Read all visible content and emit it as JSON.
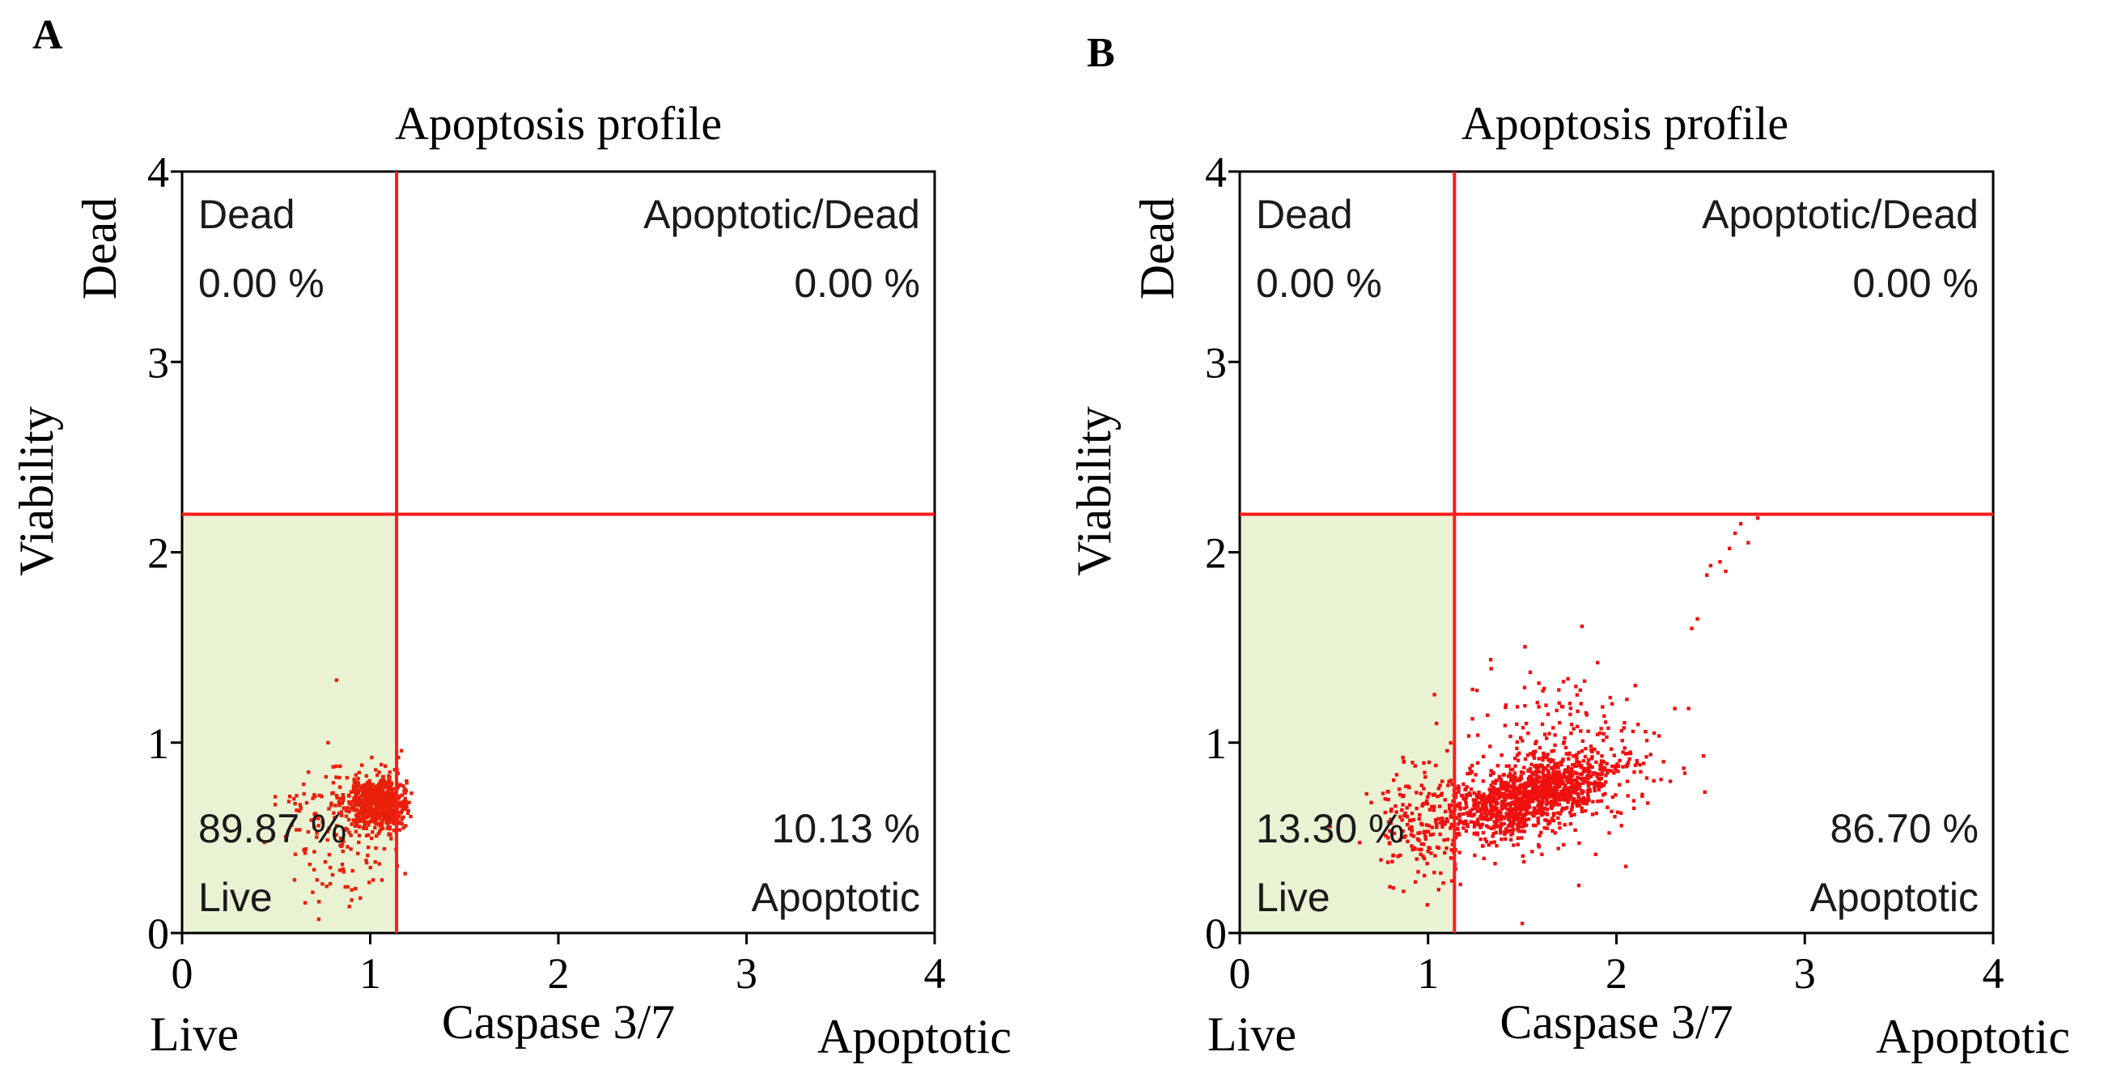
{
  "chart_data": [
    {
      "panel": "A",
      "type": "scatter",
      "title": "Apoptosis profile",
      "xlabel": "Caspase 3/7",
      "ylabel": "Viability",
      "x_low_label": "Live",
      "x_high_label": "Apoptotic",
      "y_high_label": "Dead",
      "xlim": [
        0,
        4
      ],
      "ylim": [
        0,
        4
      ],
      "x_ticks": [
        "0",
        "1",
        "2",
        "3",
        "4"
      ],
      "y_ticks": [
        "0",
        "1",
        "2",
        "3",
        "4"
      ],
      "gates": {
        "x": 1.14,
        "y": 2.2
      },
      "quadrants": {
        "dead": {
          "name": "Dead",
          "percent": "0.00 %"
        },
        "apoptotic_dead": {
          "name": "Apoptotic/Dead",
          "percent": "0.00 %"
        },
        "live": {
          "name": "Live",
          "percent": "89.87 %"
        },
        "apoptotic": {
          "name": "Apoptotic",
          "percent": "10.13 %"
        }
      },
      "clusters": [
        {
          "n": 650,
          "cx": 1.03,
          "cy": 0.68,
          "sx": 0.08,
          "sy": 0.07,
          "xmax": 1.22
        },
        {
          "n": 160,
          "cx": 0.86,
          "cy": 0.55,
          "sx": 0.16,
          "sy": 0.2,
          "xmax": 1.2
        }
      ],
      "colors": {
        "gate": "#ff1a1a",
        "points": "#e8200a",
        "live_fill": "#eaf2d4"
      }
    },
    {
      "panel": "B",
      "type": "scatter",
      "title": "Apoptosis profile",
      "xlabel": "Caspase 3/7",
      "ylabel": "Viability",
      "x_low_label": "Live",
      "x_high_label": "Apoptotic",
      "y_high_label": "Dead",
      "xlim": [
        0,
        4
      ],
      "ylim": [
        0,
        4
      ],
      "x_ticks": [
        "0",
        "1",
        "2",
        "3",
        "4"
      ],
      "y_ticks": [
        "0",
        "1",
        "2",
        "3",
        "4"
      ],
      "gates": {
        "x": 1.14,
        "y": 2.2
      },
      "quadrants": {
        "dead": {
          "name": "Dead",
          "percent": "0.00 %"
        },
        "apoptotic_dead": {
          "name": "Apoptotic/Dead",
          "percent": "0.00 %"
        },
        "live": {
          "name": "Live",
          "percent": "13.30 %"
        },
        "apoptotic": {
          "name": "Apoptotic",
          "percent": "86.70 %"
        }
      },
      "clusters": [
        {
          "n": 1100,
          "cx": 1.52,
          "cy": 0.72,
          "sx": 0.22,
          "sy": 0.09,
          "slope": 0.25
        },
        {
          "n": 260,
          "cx": 1.75,
          "cy": 0.82,
          "sx": 0.3,
          "sy": 0.16,
          "slope": 0.25
        },
        {
          "n": 160,
          "cx": 0.95,
          "cy": 0.58,
          "sx": 0.14,
          "sy": 0.17
        },
        {
          "n": 45,
          "cx": 1.6,
          "cy": 1.18,
          "sx": 0.25,
          "sy": 0.15
        }
      ],
      "outliers": [
        [
          2.48,
          1.88
        ],
        [
          2.55,
          1.95
        ],
        [
          2.6,
          2.02
        ],
        [
          2.63,
          2.1
        ],
        [
          2.66,
          2.15
        ],
        [
          2.7,
          2.05
        ],
        [
          2.58,
          1.9
        ],
        [
          2.5,
          1.93
        ],
        [
          2.4,
          1.6
        ],
        [
          2.43,
          1.65
        ],
        [
          2.75,
          2.18
        ],
        [
          2.2,
          1.05
        ],
        [
          2.25,
          0.9
        ],
        [
          2.1,
          1.3
        ],
        [
          1.9,
          1.42
        ],
        [
          1.5,
          0.05
        ],
        [
          1.8,
          0.25
        ],
        [
          2.05,
          0.35
        ]
      ],
      "colors": {
        "gate": "#ff1a1a",
        "points": "#f01010",
        "live_fill": "#eaf2d4"
      }
    }
  ]
}
